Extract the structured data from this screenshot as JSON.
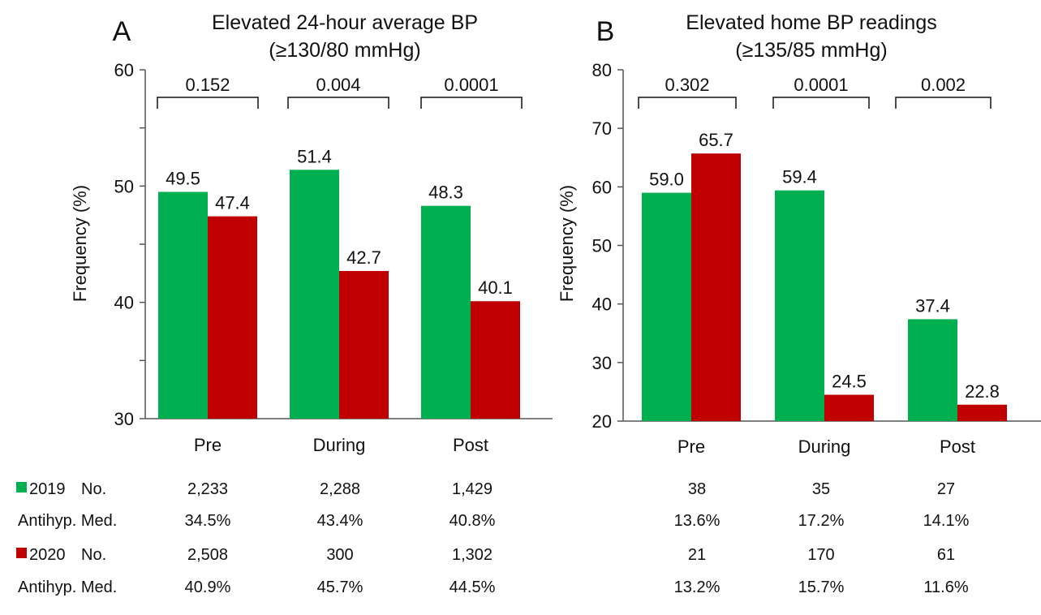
{
  "legend": {
    "items": [
      {
        "label": "2019",
        "color": "#00b050"
      },
      {
        "label": "2020",
        "color": "#c00000"
      }
    ]
  },
  "chart_data": [
    {
      "panel_letter": "A",
      "type": "bar",
      "title": "Elevated 24-hour average BP",
      "subtitle": "(≥130/80 mmHg)",
      "ylabel": "Frequency (%)",
      "ylim": [
        30,
        60
      ],
      "yticks": [
        30,
        40,
        50,
        60
      ],
      "categories": [
        "Pre",
        "During",
        "Post"
      ],
      "series": [
        {
          "name": "2019",
          "color": "#00b050",
          "values": [
            49.5,
            51.4,
            48.3
          ]
        },
        {
          "name": "2020",
          "color": "#c00000",
          "values": [
            47.4,
            42.7,
            40.1
          ]
        }
      ],
      "p_values": [
        "0.152",
        "0.004",
        "0.0001"
      ],
      "grid": false,
      "legend_position": "bottom-left"
    },
    {
      "panel_letter": "B",
      "type": "bar",
      "title": "Elevated home BP readings",
      "subtitle": "(≥135/85 mmHg)",
      "ylabel": "Frequency (%)",
      "ylim": [
        20,
        80
      ],
      "yticks": [
        20,
        30,
        40,
        50,
        60,
        70,
        80
      ],
      "categories": [
        "Pre",
        "During",
        "Post"
      ],
      "series": [
        {
          "name": "2019",
          "color": "#00b050",
          "values": [
            59.0,
            59.4,
            37.4
          ]
        },
        {
          "name": "2020",
          "color": "#c00000",
          "values": [
            65.7,
            24.5,
            22.8
          ]
        }
      ],
      "p_values": [
        "0.302",
        "0.0001",
        "0.002"
      ],
      "grid": false
    }
  ],
  "table": {
    "rows": [
      {
        "legend_index": 0,
        "label": "No.",
        "a": [
          "2,233",
          "2,288",
          "1,429"
        ],
        "b": [
          "38",
          "35",
          "27"
        ]
      },
      {
        "legend_index": null,
        "label": "Antihyp. Med.",
        "a": [
          "34.5%",
          "43.4%",
          "40.8%"
        ],
        "b": [
          "13.6%",
          "17.2%",
          "14.1%"
        ]
      },
      {
        "legend_index": 1,
        "label": "No.",
        "a": [
          "2,508",
          "300",
          "1,302"
        ],
        "b": [
          "21",
          "170",
          "61"
        ]
      },
      {
        "legend_index": null,
        "label": "Antihyp. Med.",
        "a": [
          "40.9%",
          "45.7%",
          "44.5%"
        ],
        "b": [
          "13.2%",
          "15.7%",
          "11.6%"
        ]
      }
    ]
  }
}
